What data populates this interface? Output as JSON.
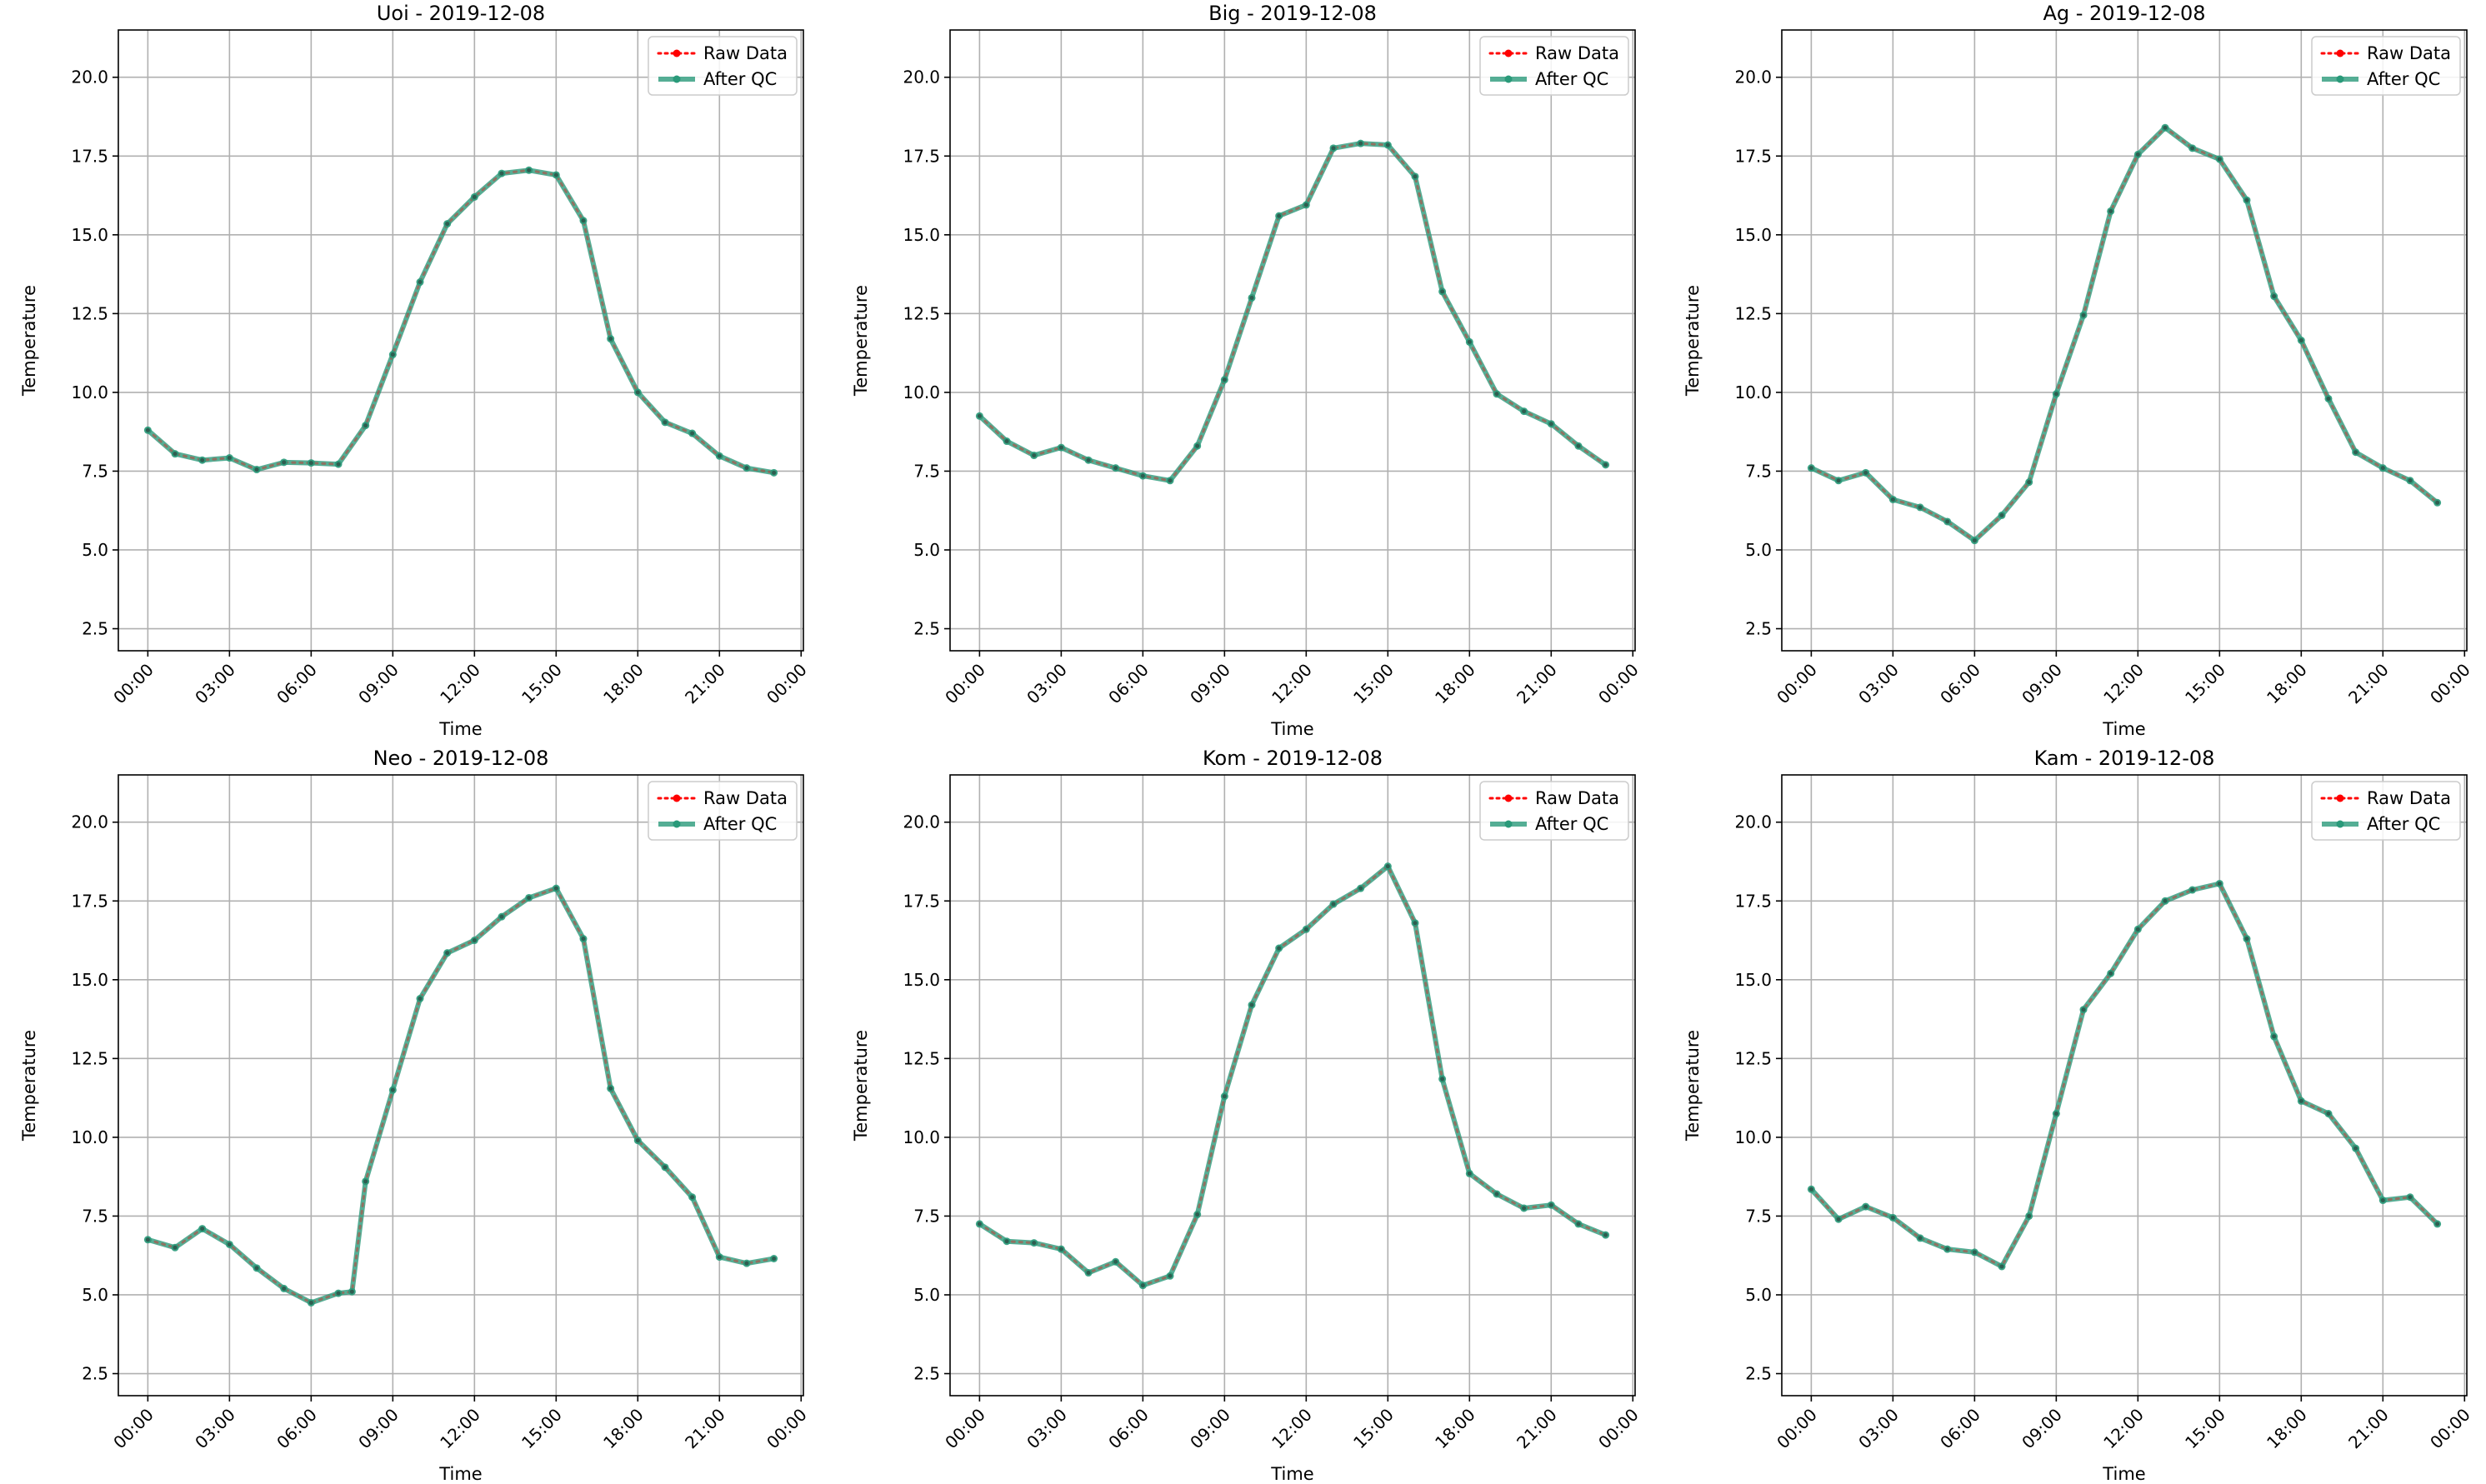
{
  "colors": {
    "raw": "#ff0000",
    "qc": "#2a9a7a",
    "grid": "#b0b0b0"
  },
  "legend": {
    "raw": "Raw Data",
    "qc": "After QC",
    "placement": "upper-right"
  },
  "chart_data": [
    {
      "type": "line",
      "title": "Uoi - 2019-12-08",
      "xlabel": "Time",
      "ylabel": "Temperature",
      "xlim": [
        "2019-12-07 22:55",
        "2019-12-09 00:05"
      ],
      "ylim": [
        1.8,
        21.5
      ],
      "grid": true,
      "xticks": [
        "00:00",
        "03:00",
        "06:00",
        "09:00",
        "12:00",
        "15:00",
        "18:00",
        "21:00",
        "00:00"
      ],
      "yticks": [
        "2.5",
        "5.0",
        "7.5",
        "10.0",
        "12.5",
        "15.0",
        "17.5",
        "20.0"
      ],
      "x": [
        "00:00",
        "01:00",
        "02:00",
        "03:00",
        "04:00",
        "05:00",
        "06:00",
        "07:00",
        "08:00",
        "09:00",
        "10:00",
        "11:00",
        "12:00",
        "13:00",
        "14:00",
        "15:00",
        "16:00",
        "17:00",
        "18:00",
        "19:00",
        "20:00",
        "21:00",
        "22:00",
        "23:00"
      ],
      "series": [
        {
          "name": "Raw Data",
          "values": [
            8.8,
            8.05,
            7.85,
            7.92,
            7.55,
            7.78,
            7.76,
            7.72,
            8.95,
            11.2,
            13.5,
            15.35,
            16.2,
            16.95,
            17.05,
            16.9,
            15.45,
            11.7,
            10.0,
            9.05,
            8.7,
            7.98,
            7.6,
            7.45
          ]
        },
        {
          "name": "After QC",
          "values": [
            8.8,
            8.05,
            7.85,
            7.92,
            7.55,
            7.78,
            7.76,
            7.72,
            8.95,
            11.2,
            13.5,
            15.35,
            16.2,
            16.95,
            17.05,
            16.9,
            15.45,
            11.7,
            10.0,
            9.05,
            8.7,
            7.98,
            7.6,
            7.45
          ]
        }
      ]
    },
    {
      "type": "line",
      "title": "Big - 2019-12-08",
      "xlabel": "Time",
      "ylabel": "Temperature",
      "xlim": [
        "2019-12-07 22:55",
        "2019-12-09 00:05"
      ],
      "ylim": [
        1.8,
        21.5
      ],
      "grid": true,
      "xticks": [
        "00:00",
        "03:00",
        "06:00",
        "09:00",
        "12:00",
        "15:00",
        "18:00",
        "21:00",
        "00:00"
      ],
      "yticks": [
        "2.5",
        "5.0",
        "7.5",
        "10.0",
        "12.5",
        "15.0",
        "17.5",
        "20.0"
      ],
      "x": [
        "00:00",
        "01:00",
        "02:00",
        "03:00",
        "04:00",
        "05:00",
        "06:00",
        "07:00",
        "08:00",
        "09:00",
        "10:00",
        "11:00",
        "12:00",
        "13:00",
        "14:00",
        "15:00",
        "16:00",
        "17:00",
        "18:00",
        "19:00",
        "20:00",
        "21:00",
        "22:00",
        "23:00"
      ],
      "series": [
        {
          "name": "Raw Data",
          "values": [
            9.25,
            8.45,
            8.0,
            8.25,
            7.85,
            7.6,
            7.35,
            7.2,
            8.3,
            10.4,
            13.0,
            15.6,
            15.95,
            17.75,
            17.9,
            17.85,
            16.85,
            13.2,
            11.6,
            9.95,
            9.4,
            9.0,
            8.3,
            7.7
          ]
        },
        {
          "name": "After QC",
          "values": [
            9.25,
            8.45,
            8.0,
            8.25,
            7.85,
            7.6,
            7.35,
            7.2,
            8.3,
            10.4,
            13.0,
            15.6,
            15.95,
            17.75,
            17.9,
            17.85,
            16.85,
            13.2,
            11.6,
            9.95,
            9.4,
            9.0,
            8.3,
            7.7
          ]
        }
      ]
    },
    {
      "type": "line",
      "title": "Ag - 2019-12-08",
      "xlabel": "Time",
      "ylabel": "Temperature",
      "xlim": [
        "2019-12-07 22:55",
        "2019-12-09 00:05"
      ],
      "ylim": [
        1.8,
        21.5
      ],
      "grid": true,
      "xticks": [
        "00:00",
        "03:00",
        "06:00",
        "09:00",
        "12:00",
        "15:00",
        "18:00",
        "21:00",
        "00:00"
      ],
      "yticks": [
        "2.5",
        "5.0",
        "7.5",
        "10.0",
        "12.5",
        "15.0",
        "17.5",
        "20.0"
      ],
      "x": [
        "00:00",
        "01:00",
        "02:00",
        "03:00",
        "04:00",
        "05:00",
        "06:00",
        "07:00",
        "08:00",
        "09:00",
        "10:00",
        "11:00",
        "12:00",
        "13:00",
        "14:00",
        "15:00",
        "16:00",
        "17:00",
        "18:00",
        "19:00",
        "20:00",
        "21:00",
        "22:00",
        "23:00"
      ],
      "series": [
        {
          "name": "Raw Data",
          "values": [
            7.6,
            7.2,
            7.45,
            6.6,
            6.35,
            5.9,
            5.3,
            6.1,
            7.15,
            9.95,
            12.45,
            15.75,
            17.55,
            18.4,
            17.75,
            17.4,
            16.1,
            13.05,
            11.65,
            9.8,
            8.1,
            7.6,
            7.2,
            6.5
          ]
        },
        {
          "name": "After QC",
          "values": [
            7.6,
            7.2,
            7.45,
            6.6,
            6.35,
            5.9,
            5.3,
            6.1,
            7.15,
            9.95,
            12.45,
            15.75,
            17.55,
            18.4,
            17.75,
            17.4,
            16.1,
            13.05,
            11.65,
            9.8,
            8.1,
            7.6,
            7.2,
            6.5
          ]
        }
      ]
    },
    {
      "type": "line",
      "title": "Neo - 2019-12-08",
      "xlabel": "Time",
      "ylabel": "Temperature",
      "xlim": [
        "2019-12-07 22:55",
        "2019-12-09 00:05"
      ],
      "ylim": [
        1.8,
        21.5
      ],
      "grid": true,
      "xticks": [
        "00:00",
        "03:00",
        "06:00",
        "09:00",
        "12:00",
        "15:00",
        "18:00",
        "21:00",
        "00:00"
      ],
      "yticks": [
        "2.5",
        "5.0",
        "7.5",
        "10.0",
        "12.5",
        "15.0",
        "17.5",
        "20.0"
      ],
      "x": [
        "00:00",
        "01:00",
        "02:00",
        "03:00",
        "04:00",
        "05:00",
        "06:00",
        "07:00",
        "07:30",
        "08:00",
        "09:00",
        "10:00",
        "11:00",
        "12:00",
        "13:00",
        "14:00",
        "15:00",
        "16:00",
        "17:00",
        "18:00",
        "19:00",
        "20:00",
        "21:00",
        "22:00",
        "23:00"
      ],
      "series": [
        {
          "name": "Raw Data",
          "values": [
            6.75,
            6.5,
            7.1,
            6.6,
            5.85,
            5.2,
            4.75,
            5.05,
            5.1,
            8.6,
            11.5,
            14.4,
            15.85,
            16.25,
            17.0,
            17.6,
            17.9,
            16.3,
            11.55,
            9.9,
            9.05,
            8.1,
            6.2,
            6.0,
            6.15
          ]
        },
        {
          "name": "After QC",
          "values": [
            6.75,
            6.5,
            7.1,
            6.6,
            5.85,
            5.2,
            4.75,
            5.05,
            5.1,
            8.6,
            11.5,
            14.4,
            15.85,
            16.25,
            17.0,
            17.6,
            17.9,
            16.3,
            11.55,
            9.9,
            9.05,
            8.1,
            6.2,
            6.0,
            6.15
          ]
        }
      ]
    },
    {
      "type": "line",
      "title": "Kom - 2019-12-08",
      "xlabel": "Time",
      "ylabel": "Temperature",
      "xlim": [
        "2019-12-07 22:55",
        "2019-12-09 00:05"
      ],
      "ylim": [
        1.8,
        21.5
      ],
      "grid": true,
      "xticks": [
        "00:00",
        "03:00",
        "06:00",
        "09:00",
        "12:00",
        "15:00",
        "18:00",
        "21:00",
        "00:00"
      ],
      "yticks": [
        "2.5",
        "5.0",
        "7.5",
        "10.0",
        "12.5",
        "15.0",
        "17.5",
        "20.0"
      ],
      "x": [
        "00:00",
        "01:00",
        "02:00",
        "03:00",
        "04:00",
        "05:00",
        "06:00",
        "07:00",
        "08:00",
        "09:00",
        "10:00",
        "11:00",
        "12:00",
        "13:00",
        "14:00",
        "15:00",
        "16:00",
        "17:00",
        "18:00",
        "19:00",
        "20:00",
        "21:00",
        "22:00",
        "23:00"
      ],
      "series": [
        {
          "name": "Raw Data",
          "values": [
            7.25,
            6.7,
            6.65,
            6.45,
            5.7,
            6.05,
            5.3,
            5.6,
            7.55,
            11.3,
            14.2,
            16.0,
            16.6,
            17.4,
            17.9,
            18.6,
            16.8,
            11.85,
            8.85,
            8.2,
            7.75,
            7.85,
            7.25,
            6.9
          ]
        },
        {
          "name": "After QC",
          "values": [
            7.25,
            6.7,
            6.65,
            6.45,
            5.7,
            6.05,
            5.3,
            5.6,
            7.55,
            11.3,
            14.2,
            16.0,
            16.6,
            17.4,
            17.9,
            18.6,
            16.8,
            11.85,
            8.85,
            8.2,
            7.75,
            7.85,
            7.25,
            6.9
          ]
        }
      ]
    },
    {
      "type": "line",
      "title": "Kam - 2019-12-08",
      "xlabel": "Time",
      "ylabel": "Temperature",
      "xlim": [
        "2019-12-07 22:55",
        "2019-12-09 00:05"
      ],
      "ylim": [
        1.8,
        21.5
      ],
      "grid": true,
      "xticks": [
        "00:00",
        "03:00",
        "06:00",
        "09:00",
        "12:00",
        "15:00",
        "18:00",
        "21:00",
        "00:00"
      ],
      "yticks": [
        "2.5",
        "5.0",
        "7.5",
        "10.0",
        "12.5",
        "15.0",
        "17.5",
        "20.0"
      ],
      "x": [
        "00:00",
        "01:00",
        "02:00",
        "03:00",
        "04:00",
        "05:00",
        "06:00",
        "07:00",
        "08:00",
        "09:00",
        "10:00",
        "11:00",
        "12:00",
        "13:00",
        "14:00",
        "15:00",
        "16:00",
        "17:00",
        "18:00",
        "19:00",
        "20:00",
        "21:00",
        "22:00",
        "23:00"
      ],
      "series": [
        {
          "name": "Raw Data",
          "values": [
            8.35,
            7.4,
            7.8,
            7.45,
            6.8,
            6.45,
            6.35,
            5.9,
            7.5,
            10.75,
            14.05,
            15.2,
            16.6,
            17.5,
            17.85,
            18.05,
            16.3,
            13.2,
            11.15,
            10.75,
            9.65,
            8.0,
            8.1,
            7.25
          ]
        },
        {
          "name": "After QC",
          "values": [
            8.35,
            7.4,
            7.8,
            7.45,
            6.8,
            6.45,
            6.35,
            5.9,
            7.5,
            10.75,
            14.05,
            15.2,
            16.6,
            17.5,
            17.85,
            18.05,
            16.3,
            13.2,
            11.15,
            10.75,
            9.65,
            8.0,
            8.1,
            7.25
          ]
        }
      ]
    }
  ]
}
